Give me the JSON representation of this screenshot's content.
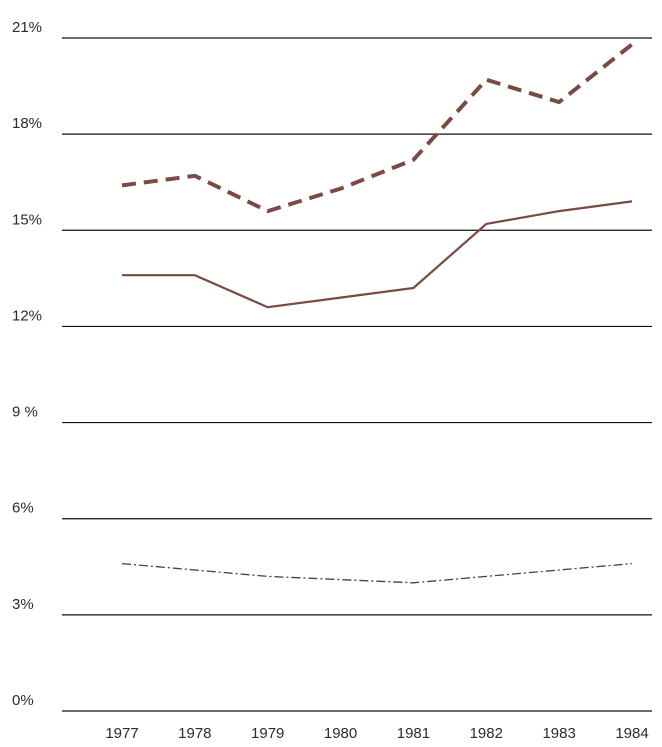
{
  "chart_data": {
    "type": "line",
    "title": "",
    "xlabel": "",
    "ylabel": "",
    "x": [
      "1977",
      "1978",
      "1979",
      "1980",
      "1981",
      "1982",
      "1983",
      "1984"
    ],
    "ylim": [
      0,
      21
    ],
    "y_ticks": [
      {
        "value": 21,
        "label": "21%"
      },
      {
        "value": 18,
        "label": "18%"
      },
      {
        "value": 15,
        "label": "15%"
      },
      {
        "value": 12,
        "label": "12%"
      },
      {
        "value": 9,
        "label": "9 %"
      },
      {
        "value": 6,
        "label": "6%"
      },
      {
        "value": 3,
        "label": "3%"
      },
      {
        "value": 0,
        "label": "0%"
      }
    ],
    "grid": true,
    "legend": "none",
    "series": [
      {
        "style": "dashed",
        "color": "#7a4a43",
        "values": [
          16.4,
          16.7,
          15.6,
          16.3,
          17.2,
          19.7,
          19.0,
          20.8
        ]
      },
      {
        "style": "solid",
        "color": "#7a4a43",
        "values": [
          13.6,
          13.6,
          12.6,
          12.9,
          13.2,
          15.2,
          15.6,
          15.9
        ]
      },
      {
        "style": "dash-dot",
        "color": "#444444",
        "values": [
          4.6,
          4.4,
          4.2,
          4.1,
          4.0,
          4.2,
          4.4,
          4.6
        ]
      }
    ]
  }
}
